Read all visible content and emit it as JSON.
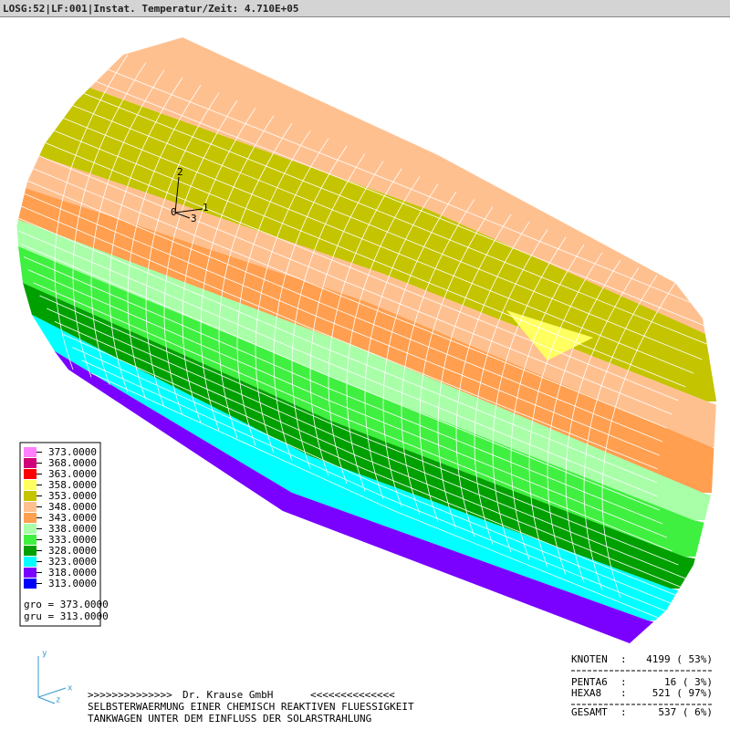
{
  "header": {
    "title": "LOSG:52|LF:001|Instat. Temperatur/Zeit: 4.710E+05"
  },
  "legend": {
    "entries": [
      {
        "label": "373.0000",
        "color": "#ff80ff"
      },
      {
        "label": "368.0000",
        "color": "#d0007a"
      },
      {
        "label": "363.0000",
        "color": "#ff0000"
      },
      {
        "label": "358.0000",
        "color": "#ffff60"
      },
      {
        "label": "353.0000",
        "color": "#c4c400"
      },
      {
        "label": "348.0000",
        "color": "#ffc090"
      },
      {
        "label": "343.0000",
        "color": "#ff9f4f"
      },
      {
        "label": "338.0000",
        "color": "#a8ffa8"
      },
      {
        "label": "333.0000",
        "color": "#40f040"
      },
      {
        "label": "328.0000",
        "color": "#00a000"
      },
      {
        "label": "323.0000",
        "color": "#00ffff"
      },
      {
        "label": "318.0000",
        "color": "#7a00ff"
      },
      {
        "label": "313.0000",
        "color": "#0000ff"
      }
    ],
    "gro": "gro = 373.0000",
    "gru": "gru = 313.0000"
  },
  "triad": {
    "labels": [
      "2",
      "1",
      "3",
      "0"
    ]
  },
  "axes": {
    "y": "y",
    "x": "x",
    "z": "z"
  },
  "footer": {
    "banner_left": ">>>>>>>>>>>>>>",
    "company": "Dr. Krause GmbH",
    "banner_right": "<<<<<<<<<<<<<<",
    "line1": "SELBSTERWAERMUNG EINER CHEMISCH REAKTIVEN FLUESSIGKEIT",
    "line2": "TANKWAGEN UNTER DEM EINFLUSS DER SOLARSTRAHLUNG"
  },
  "stats": {
    "rows": [
      {
        "label": "KNOTEN",
        "value": "4199 ( 53%)"
      },
      {
        "label": "PENTA6",
        "value": "16 (  3%)"
      },
      {
        "label": "HEXA8",
        "value": "521 ( 97%)"
      },
      {
        "label": "GESAMT",
        "value": "537 (  6%)"
      }
    ],
    "colon": ":"
  }
}
